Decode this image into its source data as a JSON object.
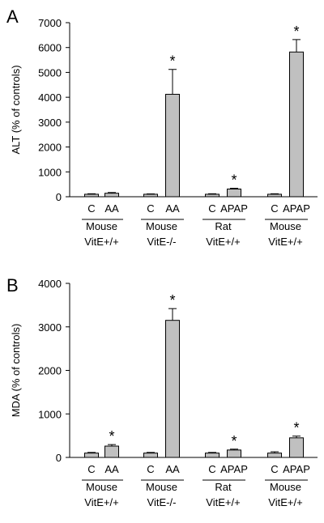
{
  "colors": {
    "bar_fill": "#c0c0c0",
    "bar_stroke": "#000000",
    "axis": "#000000",
    "text": "#000000"
  },
  "chart_data": [
    {
      "type": "bar",
      "panel_label": "A",
      "ylabel": "ALT (% of controls)",
      "ylim": [
        0,
        7000
      ],
      "yticks": [
        0,
        1000,
        2000,
        3000,
        4000,
        5000,
        6000,
        7000
      ],
      "grid": false,
      "groups": [
        {
          "species": "Mouse",
          "genotype": "VitE+/+",
          "bars": [
            {
              "label": "C",
              "value": 100,
              "error": 20,
              "significant": false
            },
            {
              "label": "AA",
              "value": 140,
              "error": 30,
              "significant": false
            }
          ]
        },
        {
          "species": "Mouse",
          "genotype": "VitE-/-",
          "bars": [
            {
              "label": "C",
              "value": 100,
              "error": 15,
              "significant": false
            },
            {
              "label": "AA",
              "value": 4120,
              "error": 1000,
              "significant": true
            }
          ]
        },
        {
          "species": "Rat",
          "genotype": "VitE+/+",
          "bars": [
            {
              "label": "C",
              "value": 100,
              "error": 20,
              "significant": false
            },
            {
              "label": "APAP",
              "value": 310,
              "error": 30,
              "significant": true
            }
          ]
        },
        {
          "species": "Mouse",
          "genotype": "VitE+/+",
          "bars": [
            {
              "label": "C",
              "value": 100,
              "error": 20,
              "significant": false
            },
            {
              "label": "APAP",
              "value": 5820,
              "error": 500,
              "significant": true
            }
          ]
        }
      ],
      "significance_marker": "*"
    },
    {
      "type": "bar",
      "panel_label": "B",
      "ylabel": "MDA (% of controls)",
      "ylim": [
        0,
        4000
      ],
      "yticks": [
        0,
        1000,
        2000,
        3000,
        4000
      ],
      "grid": false,
      "groups": [
        {
          "species": "Mouse",
          "genotype": "VitE+/+",
          "bars": [
            {
              "label": "C",
              "value": 100,
              "error": 15,
              "significant": false
            },
            {
              "label": "AA",
              "value": 260,
              "error": 35,
              "significant": true
            }
          ]
        },
        {
          "species": "Mouse",
          "genotype": "VitE-/-",
          "bars": [
            {
              "label": "C",
              "value": 100,
              "error": 15,
              "significant": false
            },
            {
              "label": "AA",
              "value": 3150,
              "error": 270,
              "significant": true
            }
          ]
        },
        {
          "species": "Rat",
          "genotype": "VitE+/+",
          "bars": [
            {
              "label": "C",
              "value": 100,
              "error": 15,
              "significant": false
            },
            {
              "label": "APAP",
              "value": 170,
              "error": 20,
              "significant": true
            }
          ]
        },
        {
          "species": "Mouse",
          "genotype": "VitE+/+",
          "bars": [
            {
              "label": "C",
              "value": 100,
              "error": 30,
              "significant": false
            },
            {
              "label": "APAP",
              "value": 450,
              "error": 40,
              "significant": true
            }
          ]
        }
      ],
      "significance_marker": "*"
    }
  ]
}
